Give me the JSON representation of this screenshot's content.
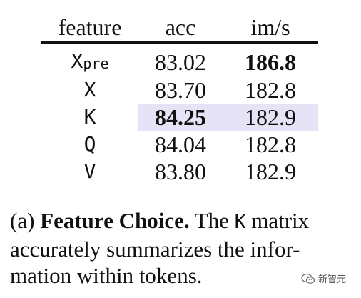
{
  "table": {
    "headers": [
      "feature",
      "acc",
      "im/s"
    ],
    "rows": [
      {
        "feature": "X",
        "feature_sub": "pre",
        "acc": "83.02",
        "ims": "186.8"
      },
      {
        "feature": "X",
        "feature_sub": "",
        "acc": "83.70",
        "ims": "182.8"
      },
      {
        "feature": "K",
        "feature_sub": "",
        "acc": "84.25",
        "ims": "182.9"
      },
      {
        "feature": "Q",
        "feature_sub": "",
        "acc": "84.04",
        "ims": "182.8"
      },
      {
        "feature": "V",
        "feature_sub": "",
        "acc": "83.80",
        "ims": "182.9"
      }
    ],
    "highlight_color": "#e7e3f6"
  },
  "caption": {
    "label": "(a)",
    "title": "Feature Choice.",
    "text_before": "The",
    "code": "K",
    "text_after": "matrix accurately summarizes the infor-mation within tokens."
  },
  "watermark": {
    "text": "新智元",
    "icon": "wechat-icon"
  }
}
